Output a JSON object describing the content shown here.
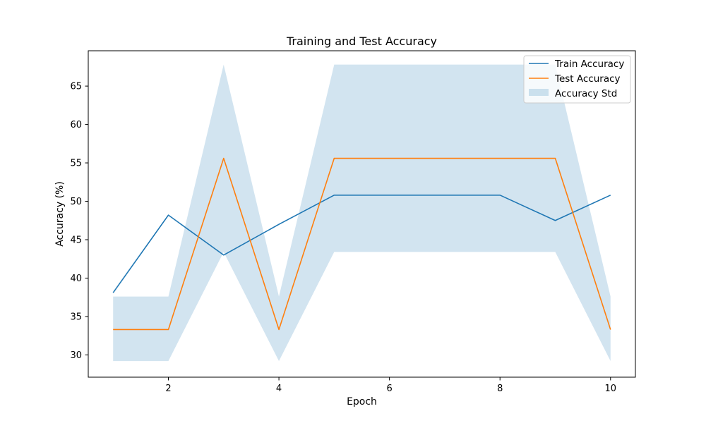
{
  "chart_data": {
    "type": "line",
    "title": "Training and Test Accuracy",
    "xlabel": "Epoch",
    "ylabel": "Accuracy (%)",
    "xlim": [
      0.55,
      10.45
    ],
    "ylim": [
      27.1,
      69.6
    ],
    "xticks": [
      2,
      4,
      6,
      8,
      10
    ],
    "yticks": [
      30,
      35,
      40,
      45,
      50,
      55,
      60,
      65
    ],
    "grid": false,
    "legend_position": "top-right",
    "x": [
      1,
      2,
      3,
      4,
      5,
      6,
      7,
      8,
      9,
      10
    ],
    "series": [
      {
        "name": "Train Accuracy",
        "color": "#1f77b4",
        "values": [
          38.1,
          48.2,
          43.0,
          47.0,
          50.8,
          50.8,
          50.8,
          50.8,
          47.5,
          50.8
        ]
      },
      {
        "name": "Test Accuracy",
        "color": "#ff7f0e",
        "values": [
          33.3,
          33.3,
          55.6,
          33.3,
          55.6,
          55.6,
          55.6,
          55.6,
          55.6,
          33.3
        ]
      }
    ],
    "band": {
      "name": "Accuracy Std",
      "color": "#1f77b4",
      "opacity": 0.2,
      "lower": [
        29.2,
        29.2,
        43.4,
        29.2,
        43.4,
        43.4,
        43.4,
        43.4,
        43.4,
        29.2
      ],
      "upper": [
        37.6,
        37.6,
        67.8,
        37.6,
        67.8,
        67.8,
        67.8,
        67.8,
        67.8,
        37.6
      ]
    }
  }
}
